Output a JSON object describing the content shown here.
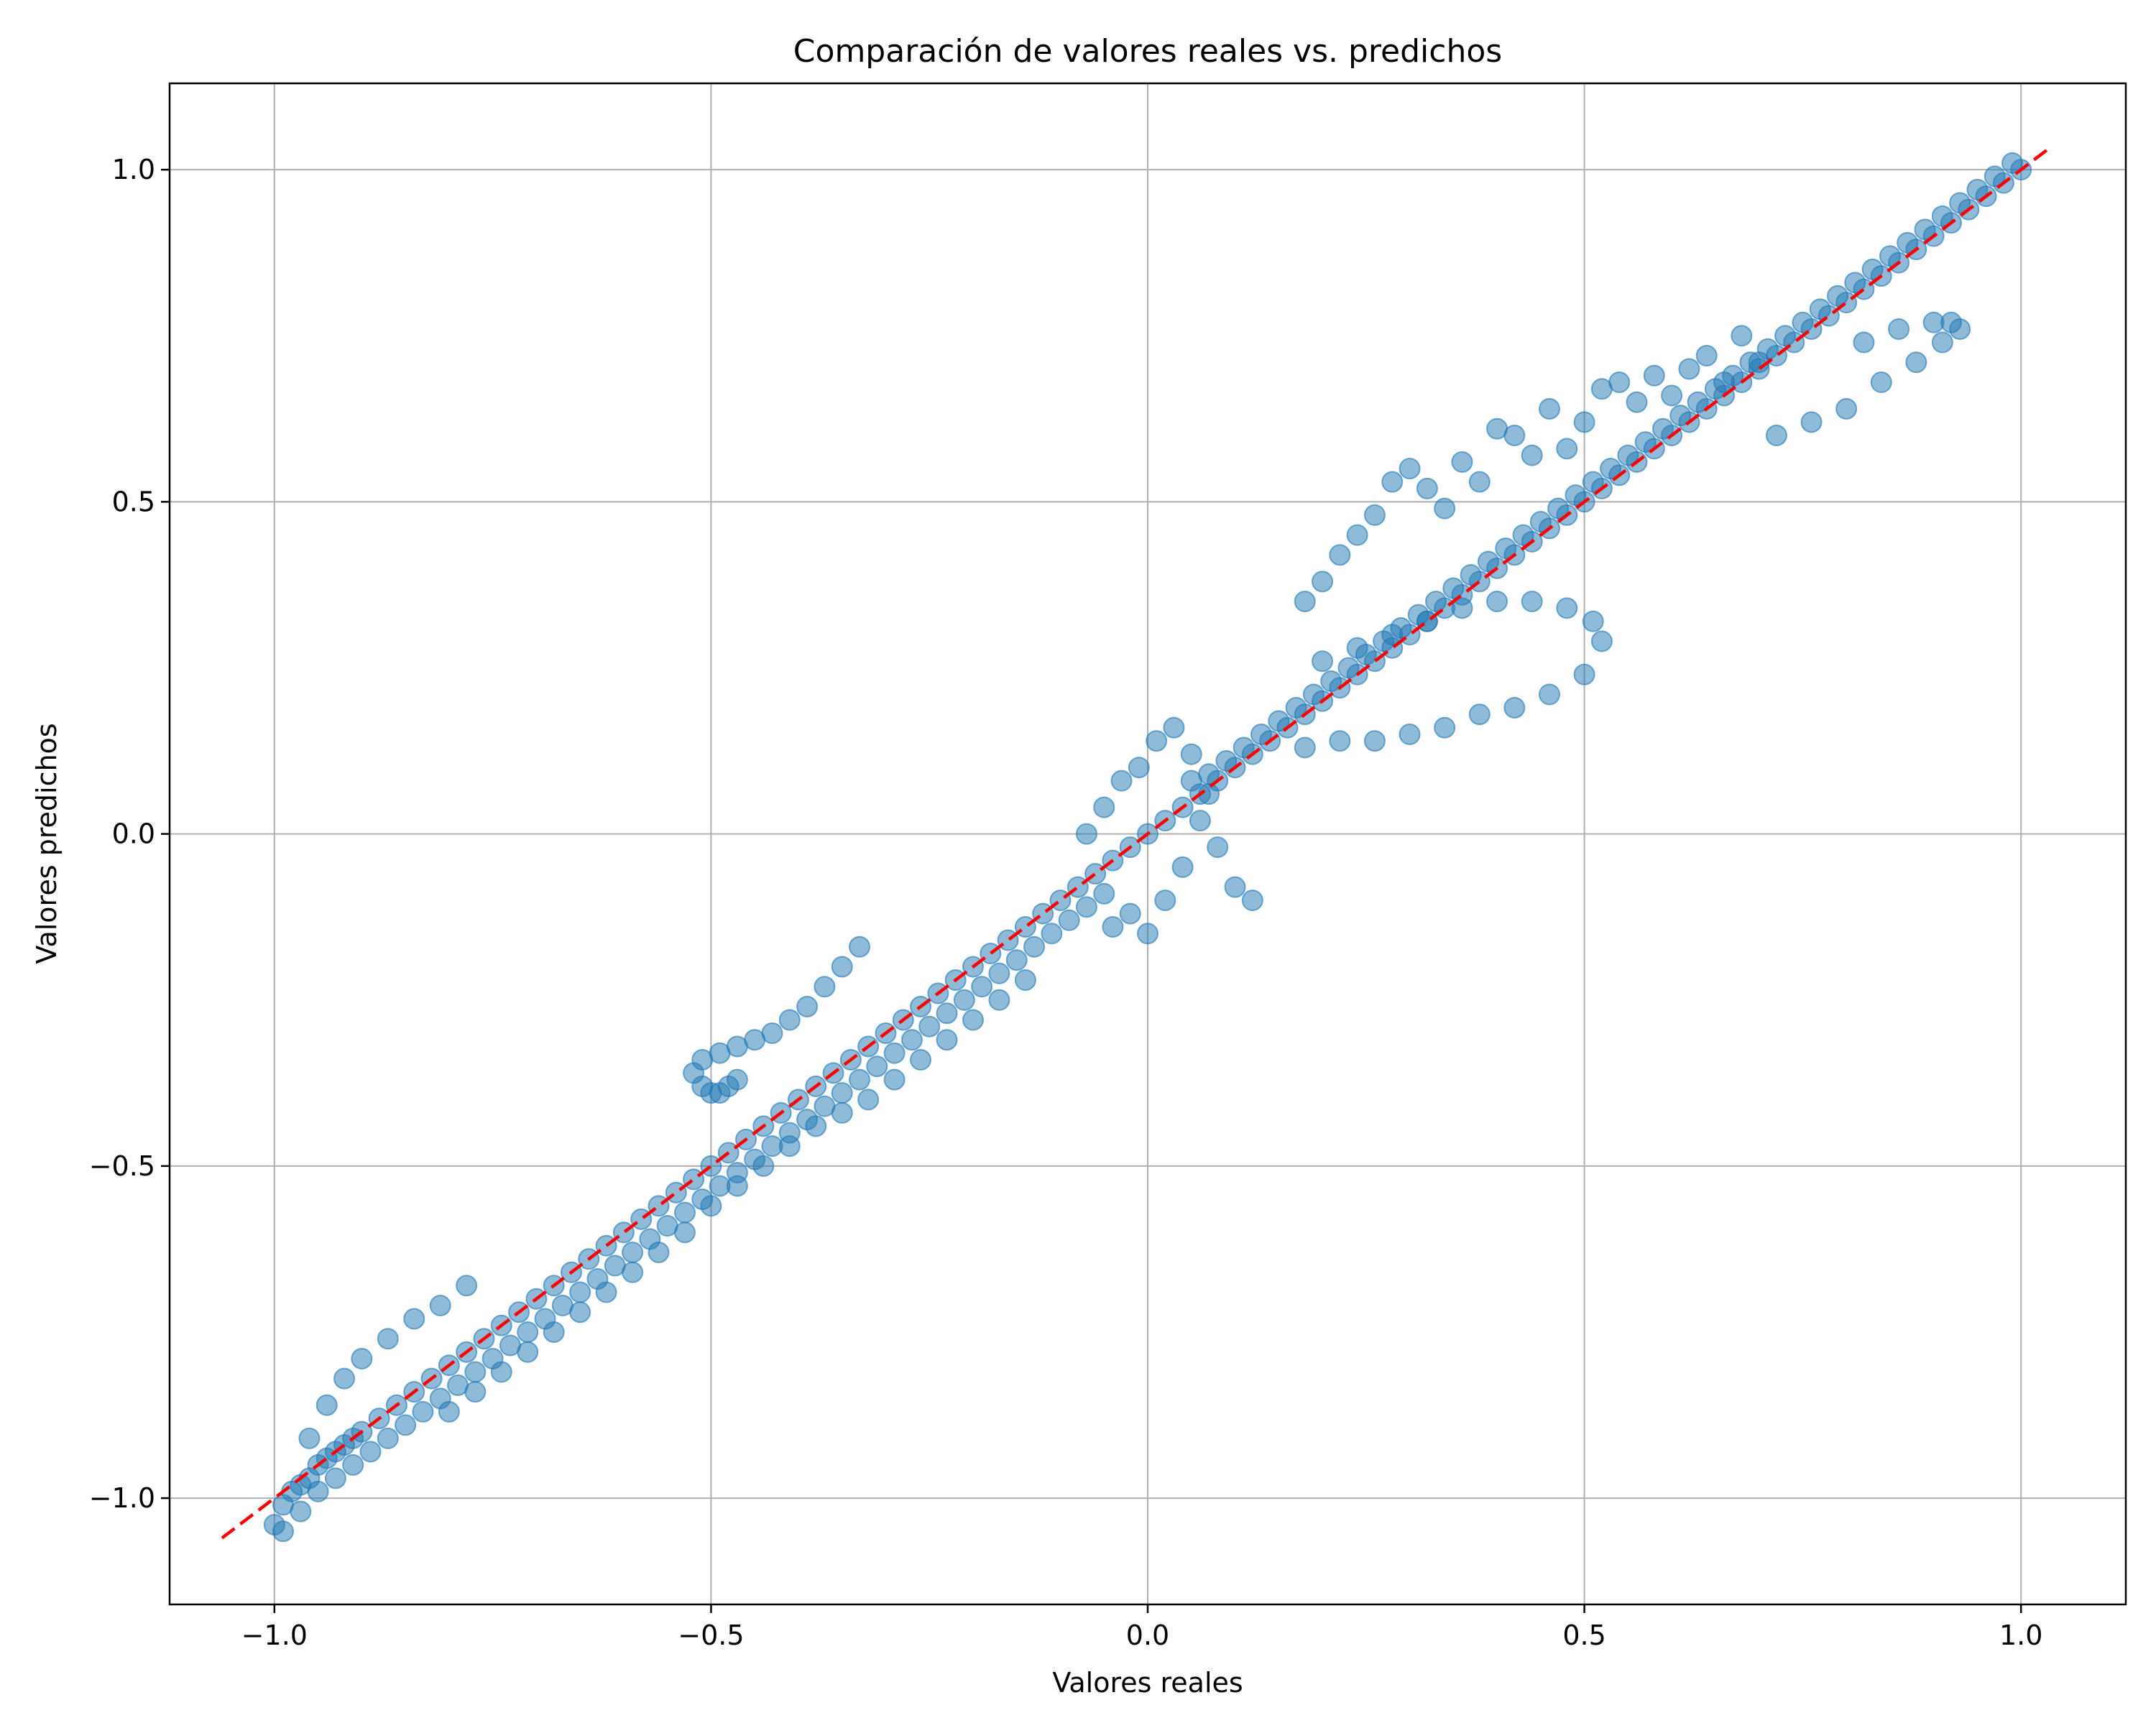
{
  "chart_data": {
    "type": "scatter",
    "title": "Comparación de valores reales vs. predichos",
    "xlabel": "Valores reales",
    "ylabel": "Valores predichos",
    "xlim": [
      -1.12,
      1.12
    ],
    "ylim": [
      -1.16,
      1.13
    ],
    "xticks": [
      -1.0,
      -0.5,
      0.0,
      0.5,
      1.0
    ],
    "yticks": [
      -1.0,
      -0.5,
      0.0,
      0.5,
      1.0
    ],
    "xtick_labels": [
      "−1.0",
      "−0.5",
      "0.0",
      "0.5",
      "1.0"
    ],
    "ytick_labels": [
      "−1.0",
      "−0.5",
      "0.0",
      "0.5",
      "1.0"
    ],
    "grid": true,
    "legend": "none",
    "colors": {
      "points": "#1f77b4",
      "reference_line": "#ff0000",
      "grid": "#b0b0b0"
    },
    "series": [
      {
        "kind": "points",
        "x": [
          -1.0,
          -0.99,
          -0.98,
          -0.97,
          -0.96,
          -0.95,
          -0.94,
          -0.93,
          -0.92,
          -0.91,
          -0.9,
          -0.88,
          -0.86,
          -0.84,
          -0.82,
          -0.8,
          -0.78,
          -0.76,
          -0.74,
          -0.72,
          -0.7,
          -0.68,
          -0.66,
          -0.64,
          -0.62,
          -0.6,
          -0.58,
          -0.56,
          -0.54,
          -0.52,
          -0.5,
          -0.48,
          -0.46,
          -0.44,
          -0.42,
          -0.4,
          -0.38,
          -0.36,
          -0.34,
          -0.32,
          -0.3,
          -0.28,
          -0.26,
          -0.24,
          -0.22,
          -0.2,
          -0.18,
          -0.16,
          -0.14,
          -0.12,
          -0.1,
          -0.08,
          -0.06,
          -0.04,
          -0.02,
          0.0,
          0.02,
          0.04,
          0.06,
          0.08,
          0.1,
          0.12,
          0.14,
          0.16,
          0.18,
          0.2,
          0.22,
          0.24,
          0.26,
          0.28,
          0.3,
          0.32,
          0.34,
          0.36,
          0.38,
          0.4,
          0.42,
          0.44,
          0.46,
          0.48,
          0.5,
          0.52,
          0.54,
          0.56,
          0.58,
          0.6,
          0.62,
          0.64,
          0.66,
          0.68,
          0.7,
          0.72,
          0.74,
          0.76,
          0.78,
          0.8,
          0.82,
          0.84,
          0.86,
          0.88,
          0.9,
          0.92,
          0.94,
          0.96,
          0.98,
          1.0,
          -0.99,
          -0.97,
          -0.95,
          -0.93,
          -0.91,
          -0.89,
          -0.87,
          -0.85,
          -0.83,
          -0.81,
          -0.79,
          -0.77,
          -0.75,
          -0.73,
          -0.71,
          -0.69,
          -0.67,
          -0.65,
          -0.63,
          -0.61,
          -0.59,
          -0.57,
          -0.55,
          -0.53,
          -0.51,
          -0.49,
          -0.47,
          -0.45,
          -0.43,
          -0.41,
          -0.39,
          -0.37,
          -0.35,
          -0.33,
          -0.31,
          -0.29,
          -0.27,
          -0.25,
          -0.23,
          -0.21,
          -0.19,
          -0.17,
          -0.15,
          -0.13,
          -0.11,
          -0.09,
          -0.07,
          -0.05,
          0.05,
          0.07,
          0.09,
          0.11,
          0.13,
          0.15,
          0.17,
          0.19,
          0.21,
          0.23,
          0.25,
          0.27,
          0.29,
          0.31,
          0.33,
          0.35,
          0.37,
          0.39,
          0.41,
          0.43,
          0.45,
          0.47,
          0.49,
          0.51,
          0.53,
          0.55,
          0.57,
          0.59,
          0.61,
          0.63,
          0.65,
          0.67,
          0.69,
          0.71,
          0.73,
          0.75,
          0.77,
          0.79,
          0.81,
          0.83,
          0.85,
          0.87,
          0.89,
          0.91,
          0.93,
          0.95,
          0.97,
          0.99,
          -0.8,
          -0.77,
          -0.74,
          -0.71,
          -0.68,
          -0.65,
          -0.62,
          -0.59,
          -0.56,
          -0.53,
          -0.5,
          -0.47,
          -0.44,
          -0.41,
          -0.38,
          -0.35,
          -0.32,
          -0.29,
          -0.26,
          -0.23,
          -0.2,
          -0.17,
          -0.14,
          0.18,
          0.2,
          0.22,
          0.24,
          0.26,
          0.28,
          0.3,
          0.32,
          0.34,
          0.36,
          0.38,
          0.4,
          0.42,
          0.44,
          0.46,
          0.48,
          0.5,
          0.52,
          0.54,
          0.56,
          0.58,
          0.6,
          0.62,
          0.64,
          0.66,
          0.68,
          0.7,
          -0.96,
          -0.94,
          -0.92,
          -0.9,
          -0.87,
          -0.84,
          -0.81,
          -0.78,
          -0.33,
          -0.35,
          -0.37,
          -0.39,
          -0.41,
          -0.43,
          -0.45,
          -0.47,
          -0.49,
          -0.51,
          -0.52,
          -0.51,
          -0.5,
          -0.49,
          -0.48,
          -0.47,
          0.18,
          0.22,
          0.26,
          0.3,
          0.34,
          0.38,
          0.42,
          0.46,
          0.5,
          0.52,
          0.51,
          0.48,
          0.44,
          0.4,
          0.36,
          0.32,
          0.28,
          0.24,
          0.2,
          0.72,
          0.76,
          0.8,
          0.84,
          0.88,
          0.91,
          0.93,
          0.92,
          0.9,
          0.86,
          0.82,
          -0.07,
          -0.05,
          -0.03,
          -0.01,
          0.01,
          0.03,
          0.05,
          0.07,
          -0.04,
          -0.02,
          0.0,
          0.02,
          0.04,
          0.06,
          0.08,
          0.1,
          0.12
        ],
        "y": [
          -1.04,
          -1.01,
          -0.99,
          -0.98,
          -0.97,
          -0.95,
          -0.94,
          -0.93,
          -0.92,
          -0.91,
          -0.9,
          -0.88,
          -0.86,
          -0.84,
          -0.82,
          -0.8,
          -0.78,
          -0.76,
          -0.74,
          -0.72,
          -0.7,
          -0.68,
          -0.66,
          -0.64,
          -0.62,
          -0.6,
          -0.58,
          -0.56,
          -0.54,
          -0.52,
          -0.5,
          -0.48,
          -0.46,
          -0.44,
          -0.42,
          -0.4,
          -0.38,
          -0.36,
          -0.34,
          -0.32,
          -0.3,
          -0.28,
          -0.26,
          -0.24,
          -0.22,
          -0.2,
          -0.18,
          -0.16,
          -0.14,
          -0.12,
          -0.1,
          -0.08,
          -0.06,
          -0.04,
          -0.02,
          0.0,
          0.02,
          0.04,
          0.06,
          0.08,
          0.1,
          0.12,
          0.14,
          0.16,
          0.18,
          0.2,
          0.22,
          0.24,
          0.26,
          0.28,
          0.3,
          0.32,
          0.34,
          0.36,
          0.38,
          0.4,
          0.42,
          0.44,
          0.46,
          0.48,
          0.5,
          0.52,
          0.54,
          0.56,
          0.58,
          0.6,
          0.62,
          0.64,
          0.66,
          0.68,
          0.7,
          0.72,
          0.74,
          0.76,
          0.78,
          0.8,
          0.82,
          0.84,
          0.86,
          0.88,
          0.9,
          0.92,
          0.94,
          0.96,
          0.98,
          1.0,
          -1.05,
          -1.02,
          -0.99,
          -0.97,
          -0.95,
          -0.93,
          -0.91,
          -0.89,
          -0.87,
          -0.85,
          -0.83,
          -0.81,
          -0.79,
          -0.77,
          -0.75,
          -0.73,
          -0.71,
          -0.69,
          -0.67,
          -0.65,
          -0.63,
          -0.61,
          -0.59,
          -0.57,
          -0.55,
          -0.53,
          -0.51,
          -0.49,
          -0.47,
          -0.45,
          -0.43,
          -0.41,
          -0.39,
          -0.37,
          -0.35,
          -0.33,
          -0.31,
          -0.29,
          -0.27,
          -0.25,
          -0.23,
          -0.21,
          -0.19,
          -0.17,
          -0.15,
          -0.13,
          -0.11,
          -0.09,
          0.08,
          0.09,
          0.11,
          0.13,
          0.15,
          0.17,
          0.19,
          0.21,
          0.23,
          0.25,
          0.27,
          0.29,
          0.31,
          0.33,
          0.35,
          0.37,
          0.39,
          0.41,
          0.43,
          0.45,
          0.47,
          0.49,
          0.51,
          0.53,
          0.55,
          0.57,
          0.59,
          0.61,
          0.63,
          0.65,
          0.67,
          0.69,
          0.71,
          0.73,
          0.75,
          0.77,
          0.79,
          0.81,
          0.83,
          0.85,
          0.87,
          0.89,
          0.91,
          0.93,
          0.95,
          0.97,
          0.99,
          1.01,
          -0.87,
          -0.84,
          -0.81,
          -0.78,
          -0.75,
          -0.72,
          -0.69,
          -0.66,
          -0.63,
          -0.6,
          -0.56,
          -0.53,
          -0.5,
          -0.47,
          -0.44,
          -0.42,
          -0.4,
          -0.37,
          -0.34,
          -0.31,
          -0.28,
          -0.25,
          -0.22,
          0.35,
          0.38,
          0.42,
          0.45,
          0.48,
          0.53,
          0.55,
          0.52,
          0.49,
          0.56,
          0.53,
          0.61,
          0.6,
          0.57,
          0.64,
          0.58,
          0.62,
          0.67,
          0.68,
          0.65,
          0.69,
          0.66,
          0.7,
          0.72,
          0.68,
          0.75,
          0.71,
          -0.91,
          -0.86,
          -0.82,
          -0.79,
          -0.76,
          -0.73,
          -0.71,
          -0.68,
          -0.17,
          -0.2,
          -0.23,
          -0.26,
          -0.28,
          -0.3,
          -0.31,
          -0.32,
          -0.33,
          -0.34,
          -0.36,
          -0.38,
          -0.39,
          -0.39,
          -0.38,
          -0.37,
          0.13,
          0.14,
          0.14,
          0.15,
          0.16,
          0.18,
          0.19,
          0.21,
          0.24,
          0.29,
          0.32,
          0.34,
          0.35,
          0.35,
          0.34,
          0.32,
          0.3,
          0.28,
          0.26,
          0.6,
          0.62,
          0.64,
          0.68,
          0.71,
          0.74,
          0.76,
          0.77,
          0.77,
          0.76,
          0.74,
          0.0,
          0.04,
          0.08,
          0.1,
          0.14,
          0.16,
          0.12,
          0.06,
          -0.14,
          -0.12,
          -0.15,
          -0.1,
          -0.05,
          0.02,
          -0.02,
          -0.08,
          -0.1
        ]
      },
      {
        "kind": "reference_line",
        "style": "dashed",
        "x": [
          -1.06,
          1.03
        ],
        "y": [
          -1.06,
          1.03
        ]
      }
    ]
  }
}
